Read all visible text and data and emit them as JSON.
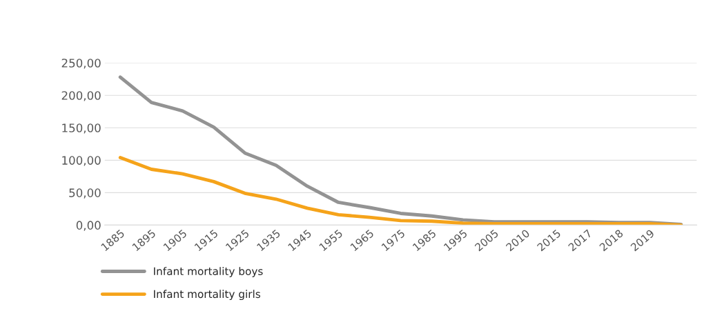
{
  "chart_data": {
    "type": "line",
    "categories": [
      "1885",
      "1895",
      "1905",
      "1915",
      "1925",
      "1935",
      "1945",
      "1955",
      "1965",
      "1975",
      "1985",
      "1995",
      "2005",
      "2010",
      "2015",
      "2017",
      "2018",
      "2019",
      null
    ],
    "series": [
      {
        "name": "Infant mortality boys",
        "color": "#939393",
        "values": [
          228,
          189,
          176,
          151,
          111,
          92,
          60,
          35,
          27,
          18,
          14,
          8,
          5,
          5,
          5,
          5,
          4,
          4,
          1
        ]
      },
      {
        "name": "Infant mortality girls",
        "color": "#f5a31a",
        "values": [
          104,
          86,
          79,
          67,
          49,
          40,
          26,
          16,
          12,
          7,
          6,
          3,
          2,
          2,
          2,
          2,
          2,
          2,
          0
        ]
      }
    ],
    "ylim": [
      0,
      250
    ],
    "yticks": [
      {
        "value": 0,
        "label": "0,00"
      },
      {
        "value": 50,
        "label": "50,00"
      },
      {
        "value": 100,
        "label": "100,00"
      },
      {
        "value": 150,
        "label": "150,00"
      },
      {
        "value": 200,
        "label": "200,00"
      },
      {
        "value": 250,
        "label": "250,00"
      }
    ],
    "grid": "y",
    "legend": "bottom left",
    "marker": "none",
    "line_style": "solid"
  }
}
